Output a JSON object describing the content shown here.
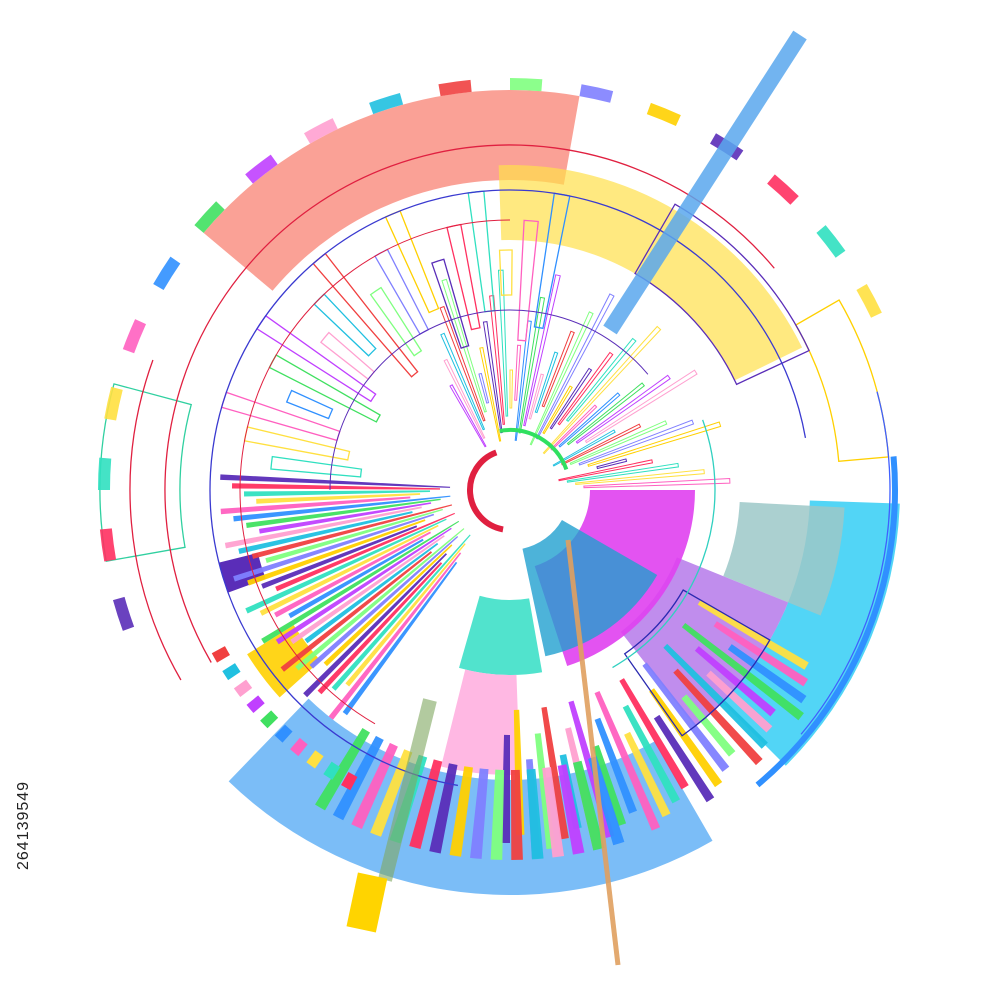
{
  "stock_id": "264139549"
}
